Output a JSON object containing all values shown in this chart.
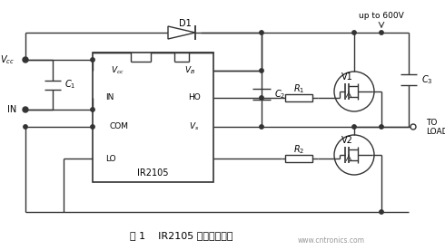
{
  "title": "图 1    IR2105 的非隔离驱动",
  "watermark": "www.cntronics.com",
  "bg_color": "#ffffff",
  "line_color": "#333333",
  "figsize": [
    4.9,
    2.76
  ],
  "dpi": 100,
  "ic_label": "IR2105",
  "pin_vcc": "V_{cc}",
  "pin_vb": "V_{B}",
  "pin_ho": "HO",
  "pin_vs": "V_{s}",
  "pin_in": "IN",
  "pin_com": "COM",
  "pin_lo": "LO",
  "label_vcc": "V_{cc}",
  "label_in": "IN",
  "label_d1": "D1",
  "label_c1": "C_{1}",
  "label_c2": "C_{2}",
  "label_c3": "C_{3}",
  "label_r1": "R_{1}",
  "label_r2": "R_{2}",
  "label_v1": "V1",
  "label_v2": "V2",
  "label_600v": "up to 600V",
  "label_to": "TO",
  "label_load": "LOAD"
}
